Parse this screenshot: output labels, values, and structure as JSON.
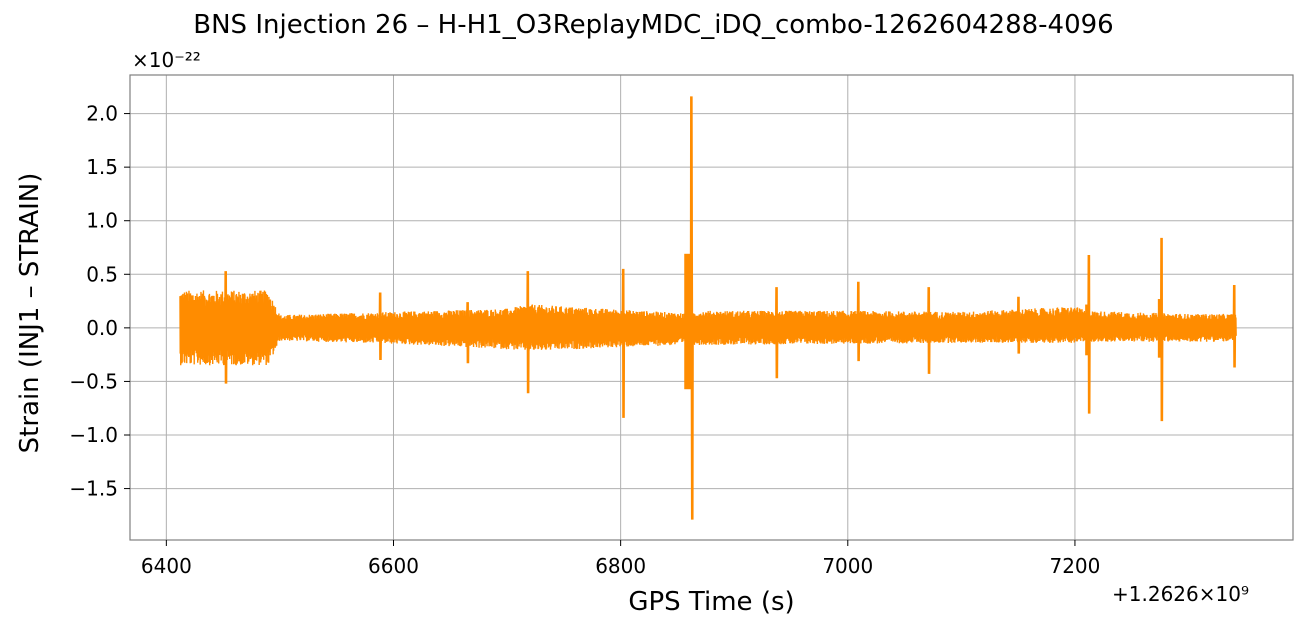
{
  "chart_data": {
    "type": "line",
    "title": "BNS Injection 26 – H-H1_O3ReplayMDC_iDQ_combo-1262604288-4096",
    "xlabel": "GPS Time (s)",
    "ylabel": "Strain (INJ1 – STRAIN)",
    "y_multiplier_label": "×10⁻²²",
    "x_offset_label": "+1.2626×10⁹",
    "xlim": [
      6368,
      7392
    ],
    "ylim": [
      -1.98,
      2.36
    ],
    "x_ticks": [
      6400,
      6600,
      6800,
      7000,
      7200
    ],
    "x_tick_labels": [
      "6400",
      "6600",
      "6800",
      "7000",
      "7200"
    ],
    "y_ticks": [
      2.0,
      1.5,
      1.0,
      0.5,
      0.0,
      -0.5,
      -1.0,
      -1.5
    ],
    "y_tick_labels": [
      "2.0",
      "1.5",
      "1.0",
      "0.5",
      "0.0",
      "−0.5",
      "−1.0",
      "−1.5"
    ],
    "grid": true,
    "line_color": "#ff8c00",
    "series": [
      {
        "x_range": [
          6412,
          7342
        ],
        "envelope_x": [
          6412,
          6490,
          6500,
          6600,
          6700,
          6720,
          6800,
          6855,
          6870,
          7000,
          7100,
          7200,
          7210,
          7270,
          7300,
          7342
        ],
        "envelope_upper": [
          0.35,
          0.35,
          0.12,
          0.15,
          0.18,
          0.22,
          0.17,
          0.14,
          0.16,
          0.16,
          0.15,
          0.2,
          0.16,
          0.14,
          0.13,
          0.13
        ],
        "envelope_lower": [
          -0.35,
          -0.35,
          -0.12,
          -0.15,
          -0.2,
          -0.22,
          -0.18,
          -0.16,
          -0.16,
          -0.15,
          -0.14,
          -0.14,
          -0.13,
          -0.13,
          -0.13,
          -0.13
        ],
        "spikes": [
          {
            "x": 6452,
            "max": 0.53,
            "min": -0.52
          },
          {
            "x": 6588,
            "max": 0.33,
            "min": -0.3
          },
          {
            "x": 6665,
            "max": 0.24,
            "min": -0.33
          },
          {
            "x": 6718,
            "max": 0.53,
            "min": -0.61
          },
          {
            "x": 6802,
            "max": 0.55,
            "min": -0.84
          },
          {
            "x": 6862,
            "max": 2.16,
            "min": -1.79
          },
          {
            "x": 6937,
            "max": 0.38,
            "min": -0.47
          },
          {
            "x": 7009,
            "max": 0.43,
            "min": -0.31
          },
          {
            "x": 7071,
            "max": 0.38,
            "min": -0.43
          },
          {
            "x": 7150,
            "max": 0.29,
            "min": -0.24
          },
          {
            "x": 7212,
            "max": 0.68,
            "min": -0.8
          },
          {
            "x": 7276,
            "max": 0.84,
            "min": -0.87
          },
          {
            "x": 7340,
            "max": 0.4,
            "min": -0.37
          }
        ]
      }
    ]
  }
}
